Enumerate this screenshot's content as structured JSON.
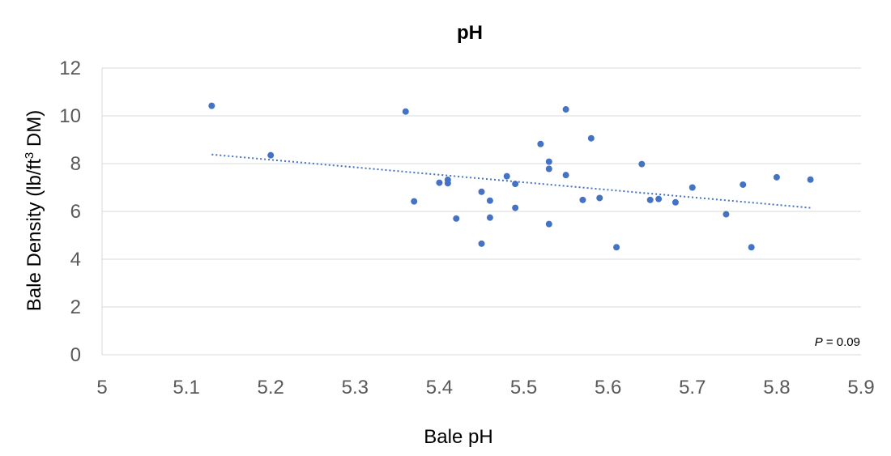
{
  "chart_data": {
    "type": "scatter",
    "title": "pH",
    "xlabel": "Bale pH",
    "ylabel_main": "Bale Density (lb/ft",
    "ylabel_sup": "3",
    "ylabel_tail": " DM)",
    "xlim": [
      5.0,
      5.9
    ],
    "ylim": [
      0,
      12
    ],
    "xticks": [
      "5",
      "5.1",
      "5.2",
      "5.3",
      "5.4",
      "5.5",
      "5.6",
      "5.7",
      "5.8",
      "5.9"
    ],
    "xtick_values": [
      5.0,
      5.1,
      5.2,
      5.3,
      5.4,
      5.5,
      5.6,
      5.7,
      5.8,
      5.9
    ],
    "yticks": [
      "0",
      "2",
      "4",
      "6",
      "8",
      "10",
      "12"
    ],
    "ytick_values": [
      0,
      2,
      4,
      6,
      8,
      10,
      12
    ],
    "grid": true,
    "point_color": "#4472c4",
    "trendline": {
      "style": "dotted",
      "color": "#4472c4",
      "x": [
        5.13,
        5.84
      ],
      "y": [
        8.38,
        6.15
      ]
    },
    "annotation": {
      "italic": "P",
      "rest": " = 0.09",
      "placement": "bottom-right"
    },
    "points": [
      {
        "x": 5.13,
        "y": 10.42
      },
      {
        "x": 5.2,
        "y": 8.35
      },
      {
        "x": 5.36,
        "y": 10.18
      },
      {
        "x": 5.37,
        "y": 6.42
      },
      {
        "x": 5.4,
        "y": 7.2
      },
      {
        "x": 5.41,
        "y": 7.18
      },
      {
        "x": 5.41,
        "y": 7.32
      },
      {
        "x": 5.42,
        "y": 5.7
      },
      {
        "x": 5.45,
        "y": 6.82
      },
      {
        "x": 5.45,
        "y": 4.65
      },
      {
        "x": 5.46,
        "y": 6.45
      },
      {
        "x": 5.46,
        "y": 5.74
      },
      {
        "x": 5.48,
        "y": 7.47
      },
      {
        "x": 5.49,
        "y": 7.15
      },
      {
        "x": 5.49,
        "y": 6.15
      },
      {
        "x": 5.52,
        "y": 8.82
      },
      {
        "x": 5.53,
        "y": 8.08
      },
      {
        "x": 5.53,
        "y": 7.78
      },
      {
        "x": 5.53,
        "y": 5.47
      },
      {
        "x": 5.55,
        "y": 10.27
      },
      {
        "x": 5.55,
        "y": 7.52
      },
      {
        "x": 5.57,
        "y": 6.48
      },
      {
        "x": 5.58,
        "y": 9.06
      },
      {
        "x": 5.59,
        "y": 6.56
      },
      {
        "x": 5.61,
        "y": 4.5
      },
      {
        "x": 5.64,
        "y": 7.98
      },
      {
        "x": 5.65,
        "y": 6.48
      },
      {
        "x": 5.66,
        "y": 6.52
      },
      {
        "x": 5.68,
        "y": 6.38
      },
      {
        "x": 5.7,
        "y": 7.0
      },
      {
        "x": 5.74,
        "y": 5.88
      },
      {
        "x": 5.76,
        "y": 7.12
      },
      {
        "x": 5.77,
        "y": 4.5
      },
      {
        "x": 5.8,
        "y": 7.43
      },
      {
        "x": 5.84,
        "y": 7.33
      }
    ]
  }
}
